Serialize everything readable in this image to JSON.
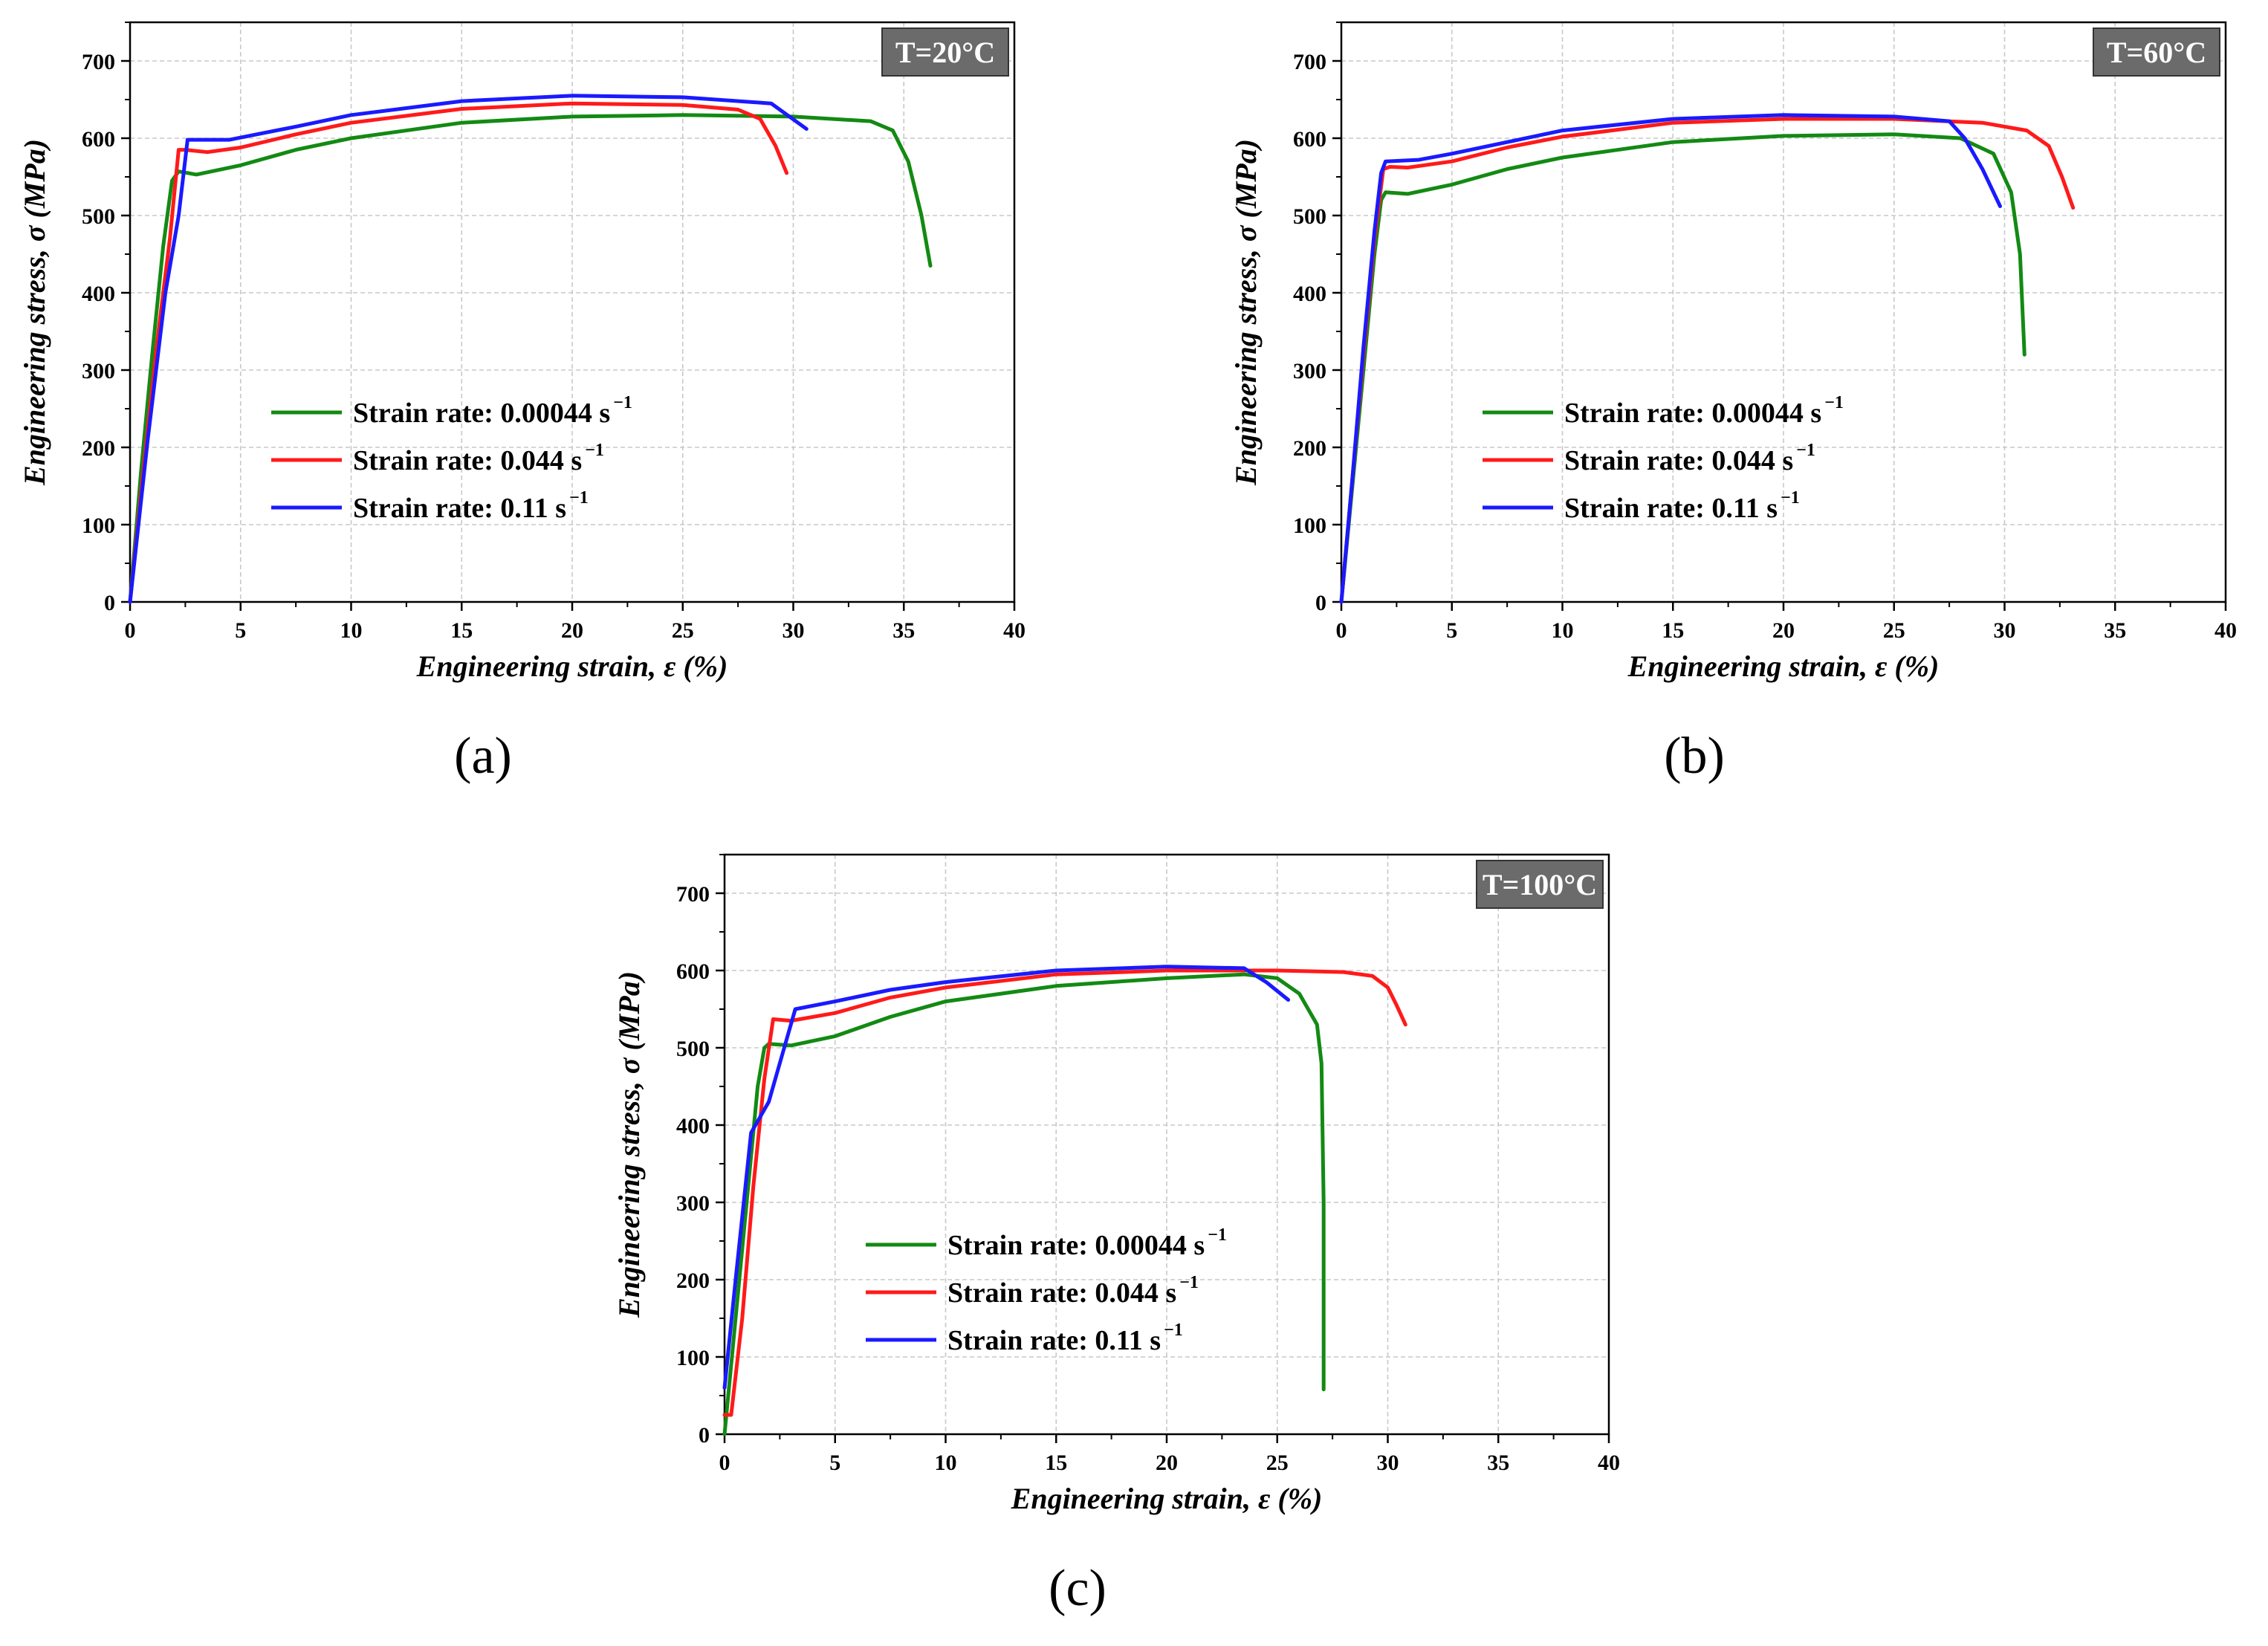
{
  "chart_data": [
    {
      "type": "line",
      "panel_label": "(a)",
      "temperature_label": "T=20°C",
      "xlabel": "Engineering strain, ε (%)",
      "ylabel": "Engineering stress, σ (MPa)",
      "xlim": [
        0,
        40
      ],
      "ylim": [
        0,
        750
      ],
      "xticks": [
        0,
        5,
        10,
        15,
        20,
        25,
        30,
        35,
        40
      ],
      "yticks": [
        0,
        100,
        200,
        300,
        400,
        500,
        600,
        700
      ],
      "grid": true,
      "legend": [
        {
          "base": "Strain rate: 0.00044 s",
          "sup": "−1",
          "color": "#138a13"
        },
        {
          "base": "Strain rate: 0.044 s",
          "sup": "−1",
          "color": "#ff1a1a"
        },
        {
          "base": "Strain rate: 0.11 s",
          "sup": "−1",
          "color": "#1a1aff"
        }
      ],
      "series": [
        {
          "name": "Strain rate: 0.00044 s−1",
          "color": "#138a13",
          "x": [
            0,
            0.5,
            1.0,
            1.5,
            1.9,
            2.2,
            3.0,
            5.0,
            7.5,
            10,
            15,
            20,
            25,
            30,
            33.5,
            34.5,
            35.2,
            35.8,
            36.2
          ],
          "y": [
            0,
            170,
            320,
            460,
            545,
            557,
            553,
            565,
            585,
            600,
            620,
            628,
            630,
            628,
            622,
            610,
            570,
            500,
            435
          ]
        },
        {
          "name": "Strain rate: 0.044 s−1",
          "color": "#ff1a1a",
          "x": [
            0,
            0.6,
            1.2,
            1.8,
            2.2,
            2.5,
            3.5,
            5,
            7.5,
            10,
            15,
            20,
            25,
            27.5,
            28.5,
            29.2,
            29.7
          ],
          "y": [
            0,
            170,
            330,
            470,
            585,
            585,
            582,
            588,
            605,
            620,
            638,
            645,
            643,
            637,
            625,
            590,
            555
          ]
        },
        {
          "name": "Strain rate: 0.11 s−1",
          "color": "#1a1aff",
          "x": [
            0,
            0.8,
            1.6,
            2.2,
            2.6,
            3.0,
            4.5,
            7.5,
            10,
            15,
            20,
            25,
            29,
            30.6
          ],
          "y": [
            0,
            210,
            400,
            500,
            598,
            598,
            598,
            615,
            630,
            648,
            655,
            653,
            645,
            612
          ]
        }
      ]
    },
    {
      "type": "line",
      "panel_label": "(b)",
      "temperature_label": "T=60°C",
      "xlabel": "Engineering strain, ε (%)",
      "ylabel": "Engineering stress, σ (MPa)",
      "xlim": [
        0,
        40
      ],
      "ylim": [
        0,
        750
      ],
      "xticks": [
        0,
        5,
        10,
        15,
        20,
        25,
        30,
        35,
        40
      ],
      "yticks": [
        0,
        100,
        200,
        300,
        400,
        500,
        600,
        700
      ],
      "grid": true,
      "legend": [
        {
          "base": "Strain rate: 0.00044 s",
          "sup": "−1",
          "color": "#138a13"
        },
        {
          "base": "Strain rate: 0.044 s",
          "sup": "−1",
          "color": "#ff1a1a"
        },
        {
          "base": "Strain rate: 0.11 s",
          "sup": "−1",
          "color": "#1a1aff"
        }
      ],
      "series": [
        {
          "name": "Strain rate: 0.00044 s−1",
          "color": "#138a13",
          "x": [
            0,
            0.5,
            1.0,
            1.5,
            1.8,
            2.0,
            3.0,
            5,
            7.5,
            10,
            15,
            20,
            25,
            28,
            29.5,
            30.3,
            30.7,
            30.9
          ],
          "y": [
            0,
            150,
            300,
            450,
            520,
            530,
            528,
            540,
            560,
            575,
            595,
            603,
            605,
            600,
            580,
            530,
            450,
            320
          ]
        },
        {
          "name": "Strain rate: 0.044 s−1",
          "color": "#ff1a1a",
          "x": [
            0,
            0.5,
            1.0,
            1.5,
            1.9,
            2.2,
            3.0,
            5,
            7.5,
            10,
            15,
            20,
            25,
            29,
            31,
            32,
            32.6,
            33.1
          ],
          "y": [
            0,
            160,
            320,
            470,
            560,
            563,
            562,
            570,
            588,
            602,
            620,
            625,
            625,
            620,
            610,
            590,
            550,
            510
          ]
        },
        {
          "name": "Strain rate: 0.11 s−1",
          "color": "#1a1aff",
          "x": [
            0,
            0.5,
            1.0,
            1.5,
            1.8,
            2.0,
            3.5,
            5,
            10,
            15,
            20,
            25,
            27.5,
            28.2,
            29,
            29.8
          ],
          "y": [
            0,
            160,
            330,
            480,
            555,
            570,
            572,
            580,
            610,
            625,
            630,
            628,
            622,
            600,
            560,
            512
          ]
        }
      ]
    },
    {
      "type": "line",
      "panel_label": "(c)",
      "temperature_label": "T=100°C",
      "xlabel": "Engineering strain, ε (%)",
      "ylabel": "Engineering stress, σ (MPa)",
      "xlim": [
        0,
        40
      ],
      "ylim": [
        0,
        750
      ],
      "xticks": [
        0,
        5,
        10,
        15,
        20,
        25,
        30,
        35,
        40
      ],
      "yticks": [
        0,
        100,
        200,
        300,
        400,
        500,
        600,
        700
      ],
      "grid": true,
      "legend": [
        {
          "base": "Strain rate: 0.00044 s",
          "sup": "−1",
          "color": "#138a13"
        },
        {
          "base": "Strain rate: 0.044 s",
          "sup": "−1",
          "color": "#ff1a1a"
        },
        {
          "base": "Strain rate: 0.11 s",
          "sup": "−1",
          "color": "#1a1aff"
        }
      ],
      "series": [
        {
          "name": "Strain rate: 0.00044 s−1",
          "color": "#138a13",
          "x": [
            0,
            0.5,
            1.0,
            1.5,
            1.8,
            2.0,
            3.0,
            5,
            7.5,
            10,
            15,
            20,
            23.5,
            25,
            26,
            26.8,
            27.0,
            27.1,
            27.1
          ],
          "y": [
            0,
            150,
            300,
            450,
            500,
            505,
            503,
            515,
            540,
            560,
            580,
            590,
            595,
            590,
            570,
            530,
            480,
            300,
            58
          ]
        },
        {
          "name": "Strain rate: 0.044 s−1",
          "color": "#ff1a1a",
          "x": [
            0,
            0.3,
            0.8,
            1.3,
            1.8,
            2.2,
            3.0,
            5,
            7.5,
            10,
            15,
            20,
            25,
            28,
            29.3,
            30,
            30.4,
            30.8
          ],
          "y": [
            25,
            25,
            150,
            320,
            460,
            537,
            535,
            545,
            565,
            578,
            595,
            600,
            600,
            598,
            593,
            578,
            555,
            530
          ]
        },
        {
          "name": "Strain rate: 0.11 s−1",
          "color": "#1a1aff",
          "x": [
            0,
            0.5,
            1.2,
            2.0,
            2.7,
            3.2,
            5,
            7.5,
            10,
            15,
            20,
            23.5,
            24.5,
            25.5
          ],
          "y": [
            60,
            200,
            390,
            430,
            500,
            550,
            560,
            575,
            585,
            600,
            605,
            603,
            585,
            562
          ]
        }
      ]
    }
  ]
}
